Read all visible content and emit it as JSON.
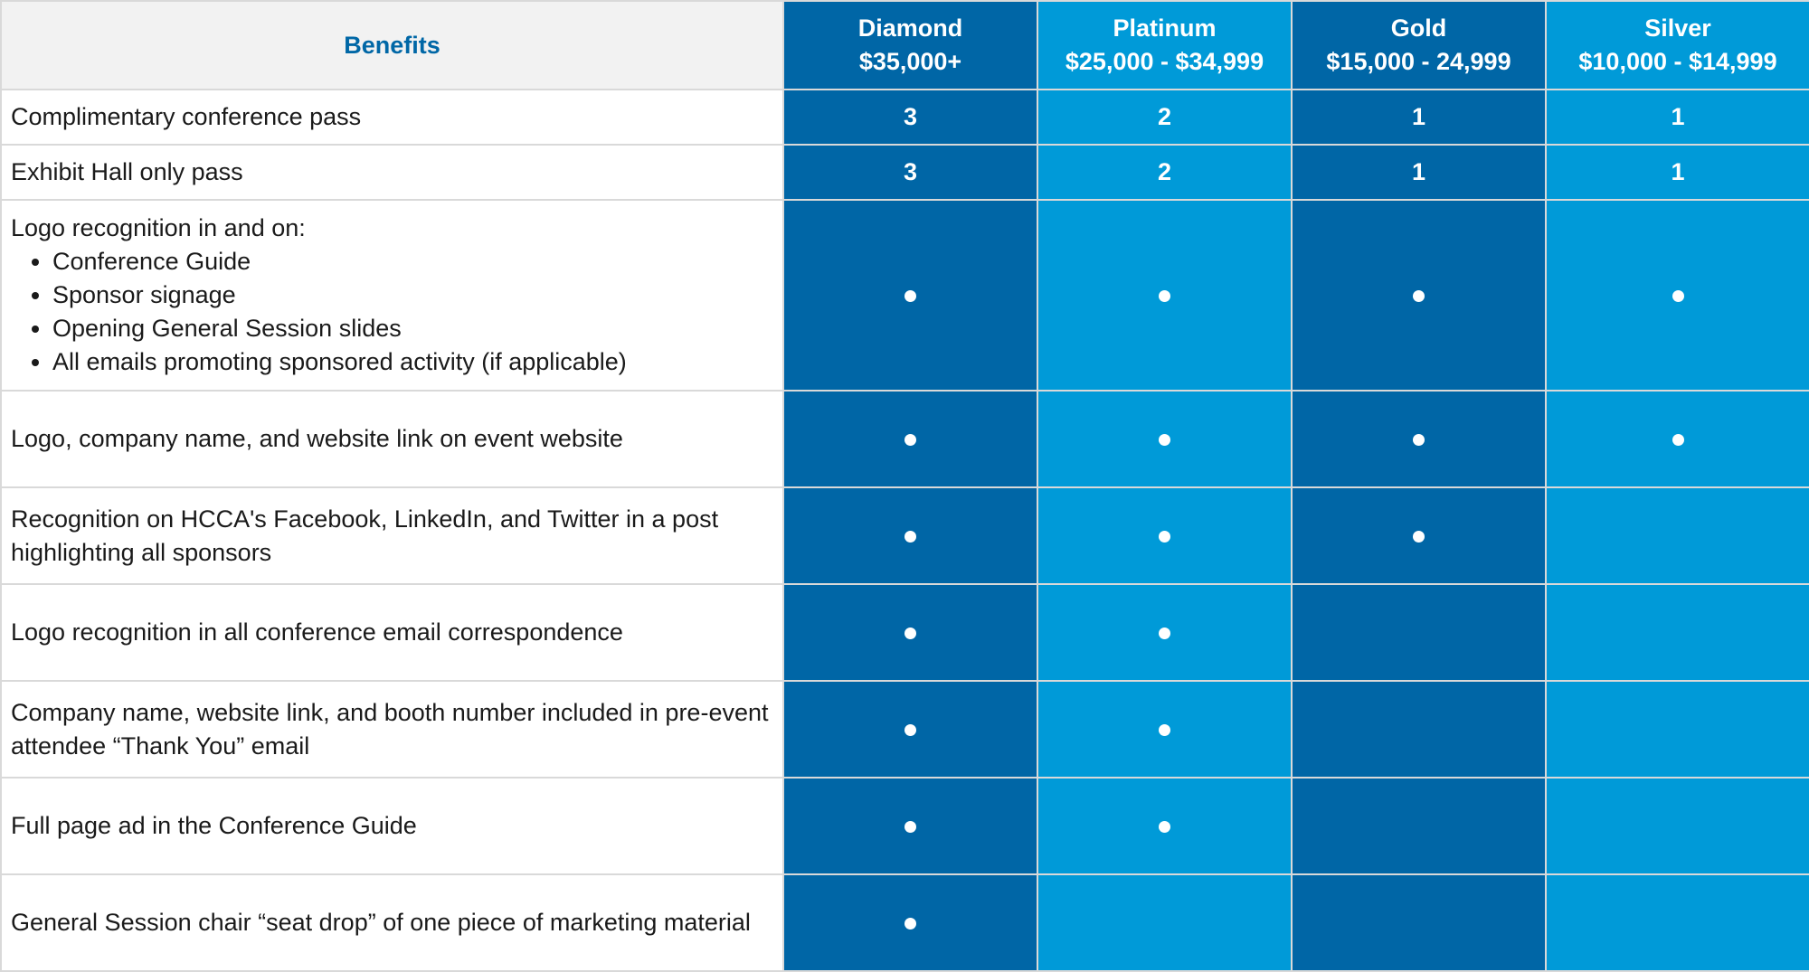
{
  "table": {
    "benefits_header": "Benefits",
    "tiers": [
      {
        "name": "Diamond",
        "price": "$35,000+"
      },
      {
        "name": "Platinum",
        "price": "$25,000 - $34,999"
      },
      {
        "name": "Gold",
        "price": "$15,000 - 24,999"
      },
      {
        "name": "Silver",
        "price": "$10,000 - $14,999"
      }
    ],
    "rows": [
      {
        "benefit": "Complimentary conference pass",
        "values": [
          "3",
          "2",
          "1",
          "1"
        ]
      },
      {
        "benefit": "Exhibit Hall only pass",
        "values": [
          "3",
          "2",
          "1",
          "1"
        ]
      },
      {
        "benefit": "Logo recognition in and on:",
        "bullets": [
          "Conference Guide",
          "Sponsor signage",
          "Opening General Session slides",
          "All emails promoting sponsored activity (if applicable)"
        ],
        "included": [
          true,
          true,
          true,
          true
        ]
      },
      {
        "benefit": "Logo, company name, and website link on event website",
        "included": [
          true,
          true,
          true,
          true
        ]
      },
      {
        "benefit": "Recognition on HCCA's Facebook, LinkedIn, and Twitter in a post highlighting all sponsors",
        "included": [
          true,
          true,
          true,
          false
        ]
      },
      {
        "benefit": "Logo recognition in all conference email correspondence",
        "included": [
          true,
          true,
          false,
          false
        ]
      },
      {
        "benefit": "Company name, website link, and booth number included in pre-event attendee “Thank You” email",
        "included": [
          true,
          true,
          false,
          false
        ]
      },
      {
        "benefit": "Full page ad in the Conference Guide",
        "included": [
          true,
          true,
          false,
          false
        ]
      },
      {
        "benefit": "General Session chair “seat drop” of one piece of marketing material",
        "included": [
          true,
          false,
          false,
          false
        ]
      }
    ]
  },
  "colors": {
    "tier_dark": "#0066a6",
    "tier_light": "#009ad8",
    "header_text": "#0067a6",
    "header_bg": "#f2f2f2"
  },
  "icons": {
    "included": "included-dot-icon"
  }
}
